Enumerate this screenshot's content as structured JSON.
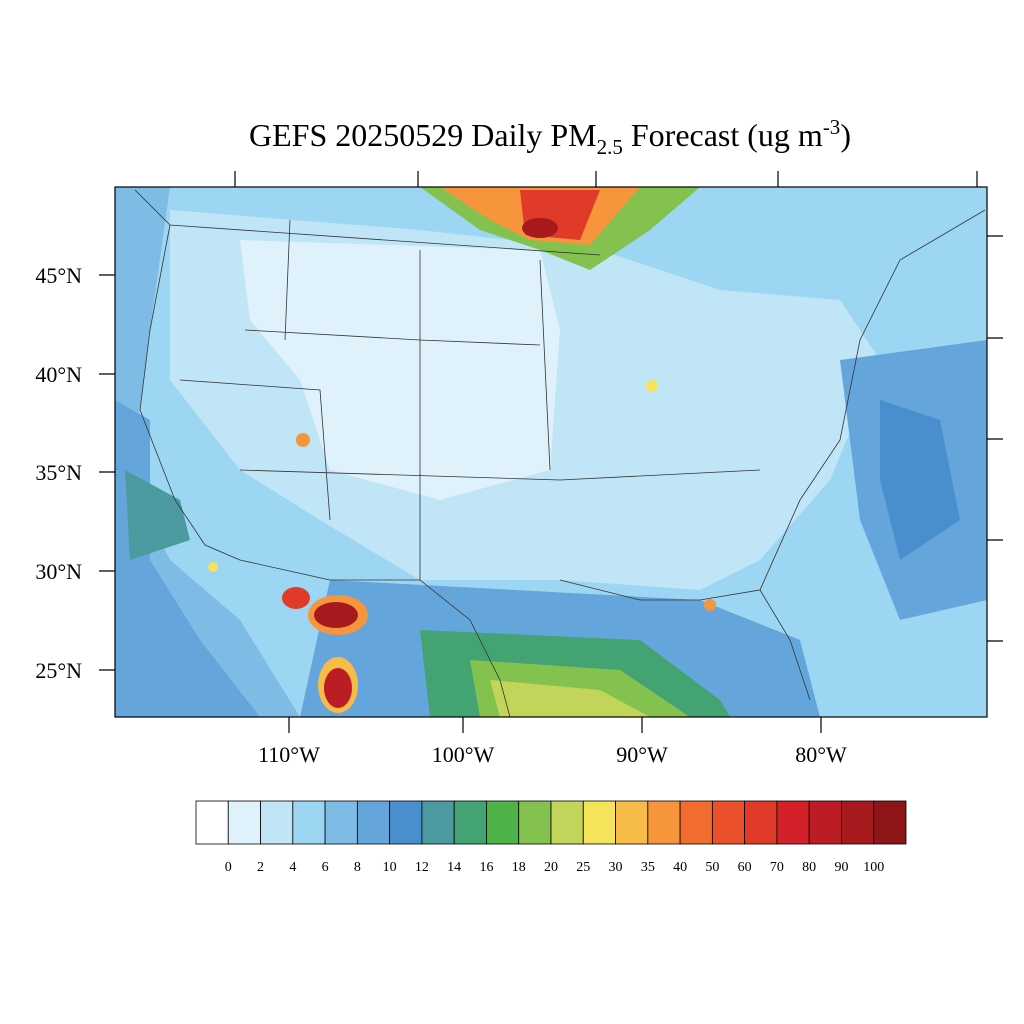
{
  "title": {
    "main": "GEFS 20250529 Daily PM",
    "sub": "2.5",
    "rest": " Forecast (ug m",
    "sup": "-3",
    "end": ")"
  },
  "lat_labels": [
    "45°N",
    "40°N",
    "35°N",
    "30°N",
    "25°N"
  ],
  "lon_labels": [
    "110°W",
    "100°W",
    "90°W",
    "80°W"
  ],
  "colorbar": {
    "levels": [
      0,
      2,
      4,
      6,
      8,
      10,
      12,
      14,
      16,
      18,
      20,
      25,
      30,
      35,
      40,
      50,
      60,
      70,
      80,
      90,
      100
    ],
    "colors": [
      "#ffffff",
      "#dff2fb",
      "#bfe5f7",
      "#9dd6f3",
      "#7fbce5",
      "#64a6db",
      "#4a8fcd",
      "#4b9a9f",
      "#44a373",
      "#4db348",
      "#83c24f",
      "#c2d55a",
      "#f5e45a",
      "#f7bb47",
      "#f6953c",
      "#f26b2f",
      "#e9502b",
      "#df3b28",
      "#d42129",
      "#bc1d24",
      "#a6191d",
      "#8e1518"
    ]
  }
}
